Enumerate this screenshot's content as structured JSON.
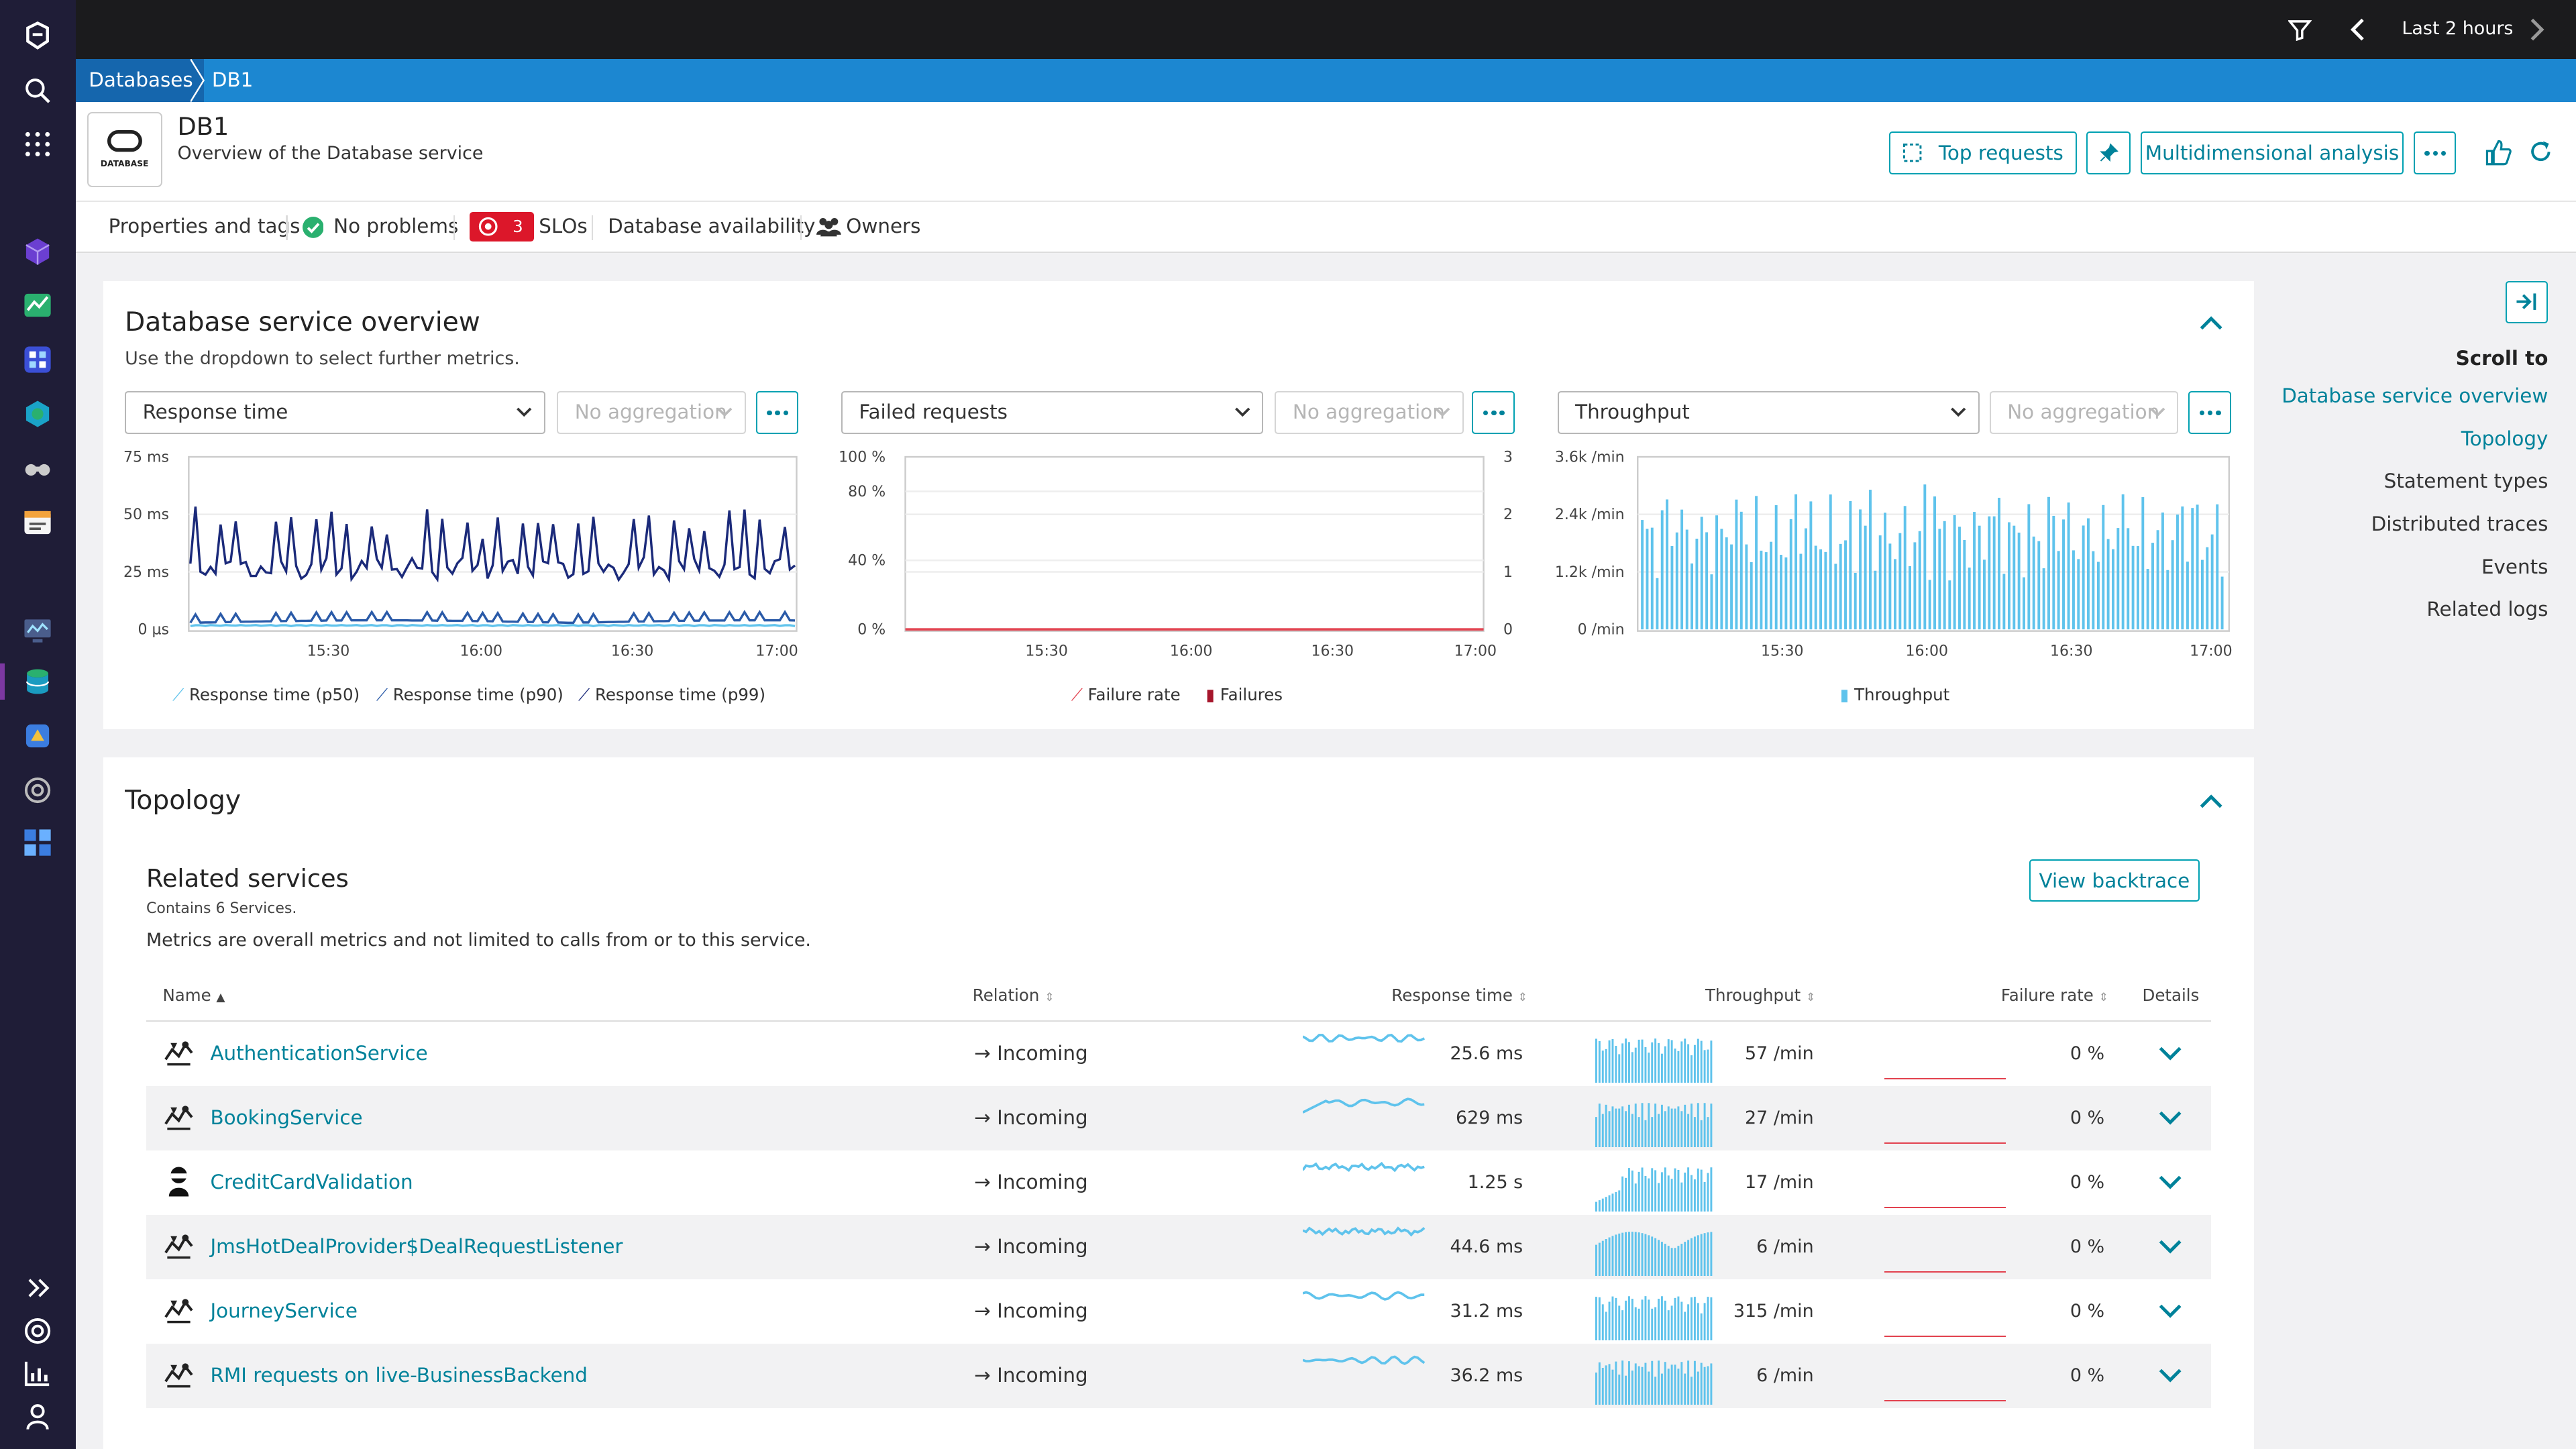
{
  "topbar": {
    "timeframe": "Last 2 hours"
  },
  "breadcrumb": {
    "parent": "Databases",
    "current": "DB1"
  },
  "header": {
    "logo_text": "DATABASE",
    "title": "DB1",
    "subtitle": "Overview of the Database service",
    "top_requests": "Top requests",
    "multidimensional": "Multidimensional analysis"
  },
  "tags": {
    "properties": "Properties and tags",
    "problems": "No problems",
    "slo_count": "3",
    "slos": "SLOs",
    "availability": "Database availability",
    "owners": "Owners"
  },
  "overview": {
    "title": "Database service overview",
    "subtitle": "Use the dropdown to select further metrics.",
    "charts": [
      {
        "metric": "Response time",
        "aggregation": "No aggregation",
        "yticks": [
          "75 ms",
          "50 ms",
          "25 ms",
          "0 µs"
        ],
        "xticks": [
          "15:30",
          "16:00",
          "16:30",
          "17:00"
        ],
        "legend": [
          "Response time (p50)",
          "Response time (p90)",
          "Response time (p99)"
        ]
      },
      {
        "metric": "Failed requests",
        "aggregation": "No aggregation",
        "yticks": [
          "100 %",
          "80 %",
          "40 %",
          "0 %"
        ],
        "y2ticks": [
          "3",
          "2",
          "1",
          "0"
        ],
        "xticks": [
          "15:30",
          "16:00",
          "16:30",
          "17:00"
        ],
        "legend": [
          "Failure rate",
          "Failures"
        ]
      },
      {
        "metric": "Throughput",
        "aggregation": "No aggregation",
        "yticks": [
          "3.6k /min",
          "2.4k /min",
          "1.2k /min",
          "0 /min"
        ],
        "xticks": [
          "15:30",
          "16:00",
          "16:30",
          "17:00"
        ],
        "legend": [
          "Throughput"
        ]
      }
    ]
  },
  "scroll": {
    "title": "Scroll to",
    "items": [
      "Database service overview",
      "Topology",
      "Statement types",
      "Distributed traces",
      "Events",
      "Related logs"
    ]
  },
  "topology": {
    "title": "Topology",
    "related_title": "Related services",
    "contains": "Contains 6 Services.",
    "note": "Metrics are overall metrics and not limited to calls from or to this service.",
    "view_backtrace": "View backtrace",
    "columns": {
      "name": "Name",
      "relation": "Relation",
      "response_time": "Response time",
      "throughput": "Throughput",
      "failure_rate": "Failure rate",
      "details": "Details"
    },
    "rows": [
      {
        "name": "AuthenticationService",
        "relation": "→ Incoming",
        "response_time": "25.6 ms",
        "throughput": "57 /min",
        "failure_rate": "0 %"
      },
      {
        "name": "BookingService",
        "relation": "→ Incoming",
        "response_time": "629 ms",
        "throughput": "27 /min",
        "failure_rate": "0 %"
      },
      {
        "name": "CreditCardValidation",
        "relation": "→ Incoming",
        "response_time": "1.25 s",
        "throughput": "17 /min",
        "failure_rate": "0 %"
      },
      {
        "name": "JmsHotDealProvider$DealRequestListener",
        "relation": "→ Incoming",
        "response_time": "44.6 ms",
        "throughput": "6 /min",
        "failure_rate": "0 %"
      },
      {
        "name": "JourneyService",
        "relation": "→ Incoming",
        "response_time": "31.2 ms",
        "throughput": "315 /min",
        "failure_rate": "0 %"
      },
      {
        "name": "RMI requests on live-BusinessBackend",
        "relation": "→ Incoming",
        "response_time": "36.2 ms",
        "throughput": "6 /min",
        "failure_rate": "0 %"
      }
    ]
  },
  "colors": {
    "accent": "#00a1b2",
    "link": "#00829a",
    "nav": "#1f1d37",
    "breadcrumb": "#1c87d1",
    "topbar": "#1b1b1d",
    "line_dark": "#1b2a7a",
    "line_light": "#5fc3ec",
    "failure": "#e2424f",
    "slo_badge": "#dc172a",
    "success": "#2ab06f"
  }
}
